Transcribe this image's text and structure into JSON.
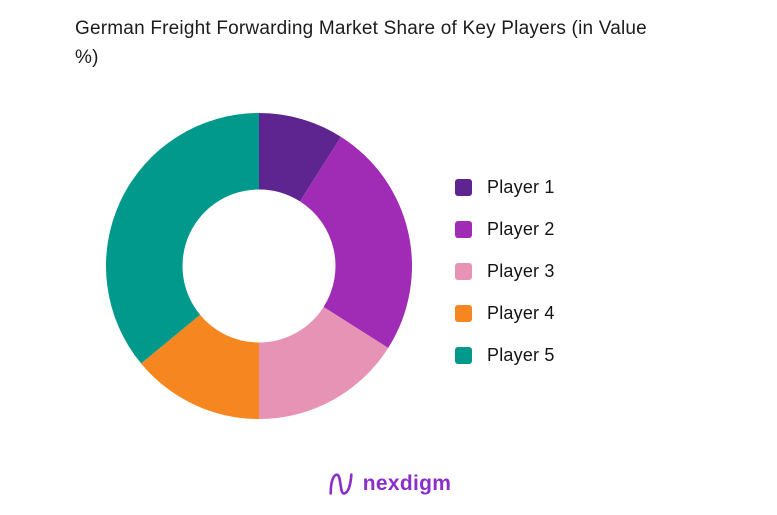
{
  "title": "German Freight Forwarding Market Share of Key Players (in Value %)",
  "chart_data": {
    "type": "pie",
    "subtype": "donut",
    "title": "German Freight Forwarding Market Share of Key Players (in Value %)",
    "labels": [
      "Player 1",
      "Player 2",
      "Player 3",
      "Player 4",
      "Player 5"
    ],
    "values": [
      9,
      25,
      16,
      14,
      36
    ],
    "unit": "percent of market value",
    "colors": [
      "#5e2591",
      "#a02cb5",
      "#e693b5",
      "#f6861f",
      "#00998c"
    ],
    "legend_position": "right",
    "start_angle_deg": 0,
    "direction": "clockwise",
    "inner_radius_ratio": 0.5,
    "data_labels_shown": false
  },
  "footer": {
    "brand": "nexdigm",
    "brand_color": "#8a2fc9"
  }
}
